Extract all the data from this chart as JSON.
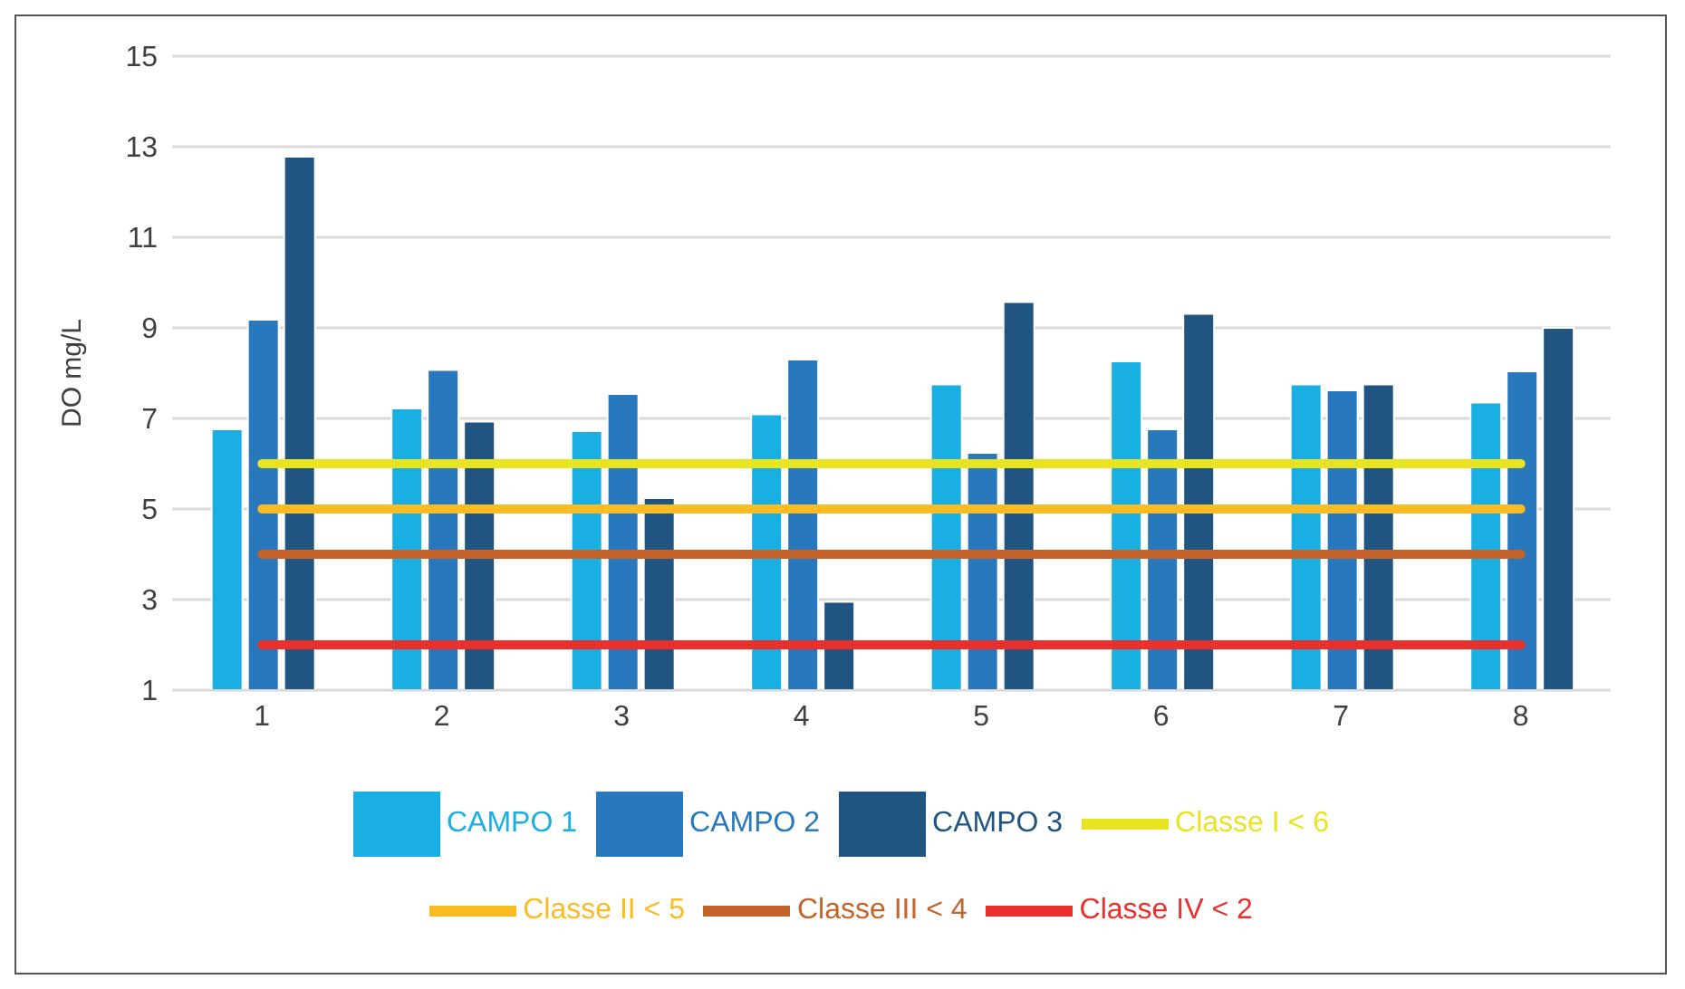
{
  "chart_data": {
    "type": "bar",
    "ylabel": "DO mg/L",
    "categories": [
      "1",
      "2",
      "3",
      "4",
      "5",
      "6",
      "7",
      "8"
    ],
    "series": [
      {
        "name": "CAMPO 1",
        "color": "#1aafe3",
        "values": [
          6.76,
          7.22,
          6.72,
          7.09,
          7.75,
          8.26,
          7.75,
          7.35
        ]
      },
      {
        "name": "CAMPO 2",
        "color": "#2878bd",
        "values": [
          9.18,
          8.07,
          7.54,
          8.3,
          6.24,
          6.76,
          7.62,
          8.04
        ]
      },
      {
        "name": "CAMPO 3",
        "color": "#1f5580",
        "values": [
          12.78,
          6.93,
          5.24,
          2.95,
          9.57,
          9.31,
          7.75,
          9.0
        ]
      },
      {
        "name": "Classe I < 6",
        "type": "line",
        "color": "#e8e41f",
        "values": [
          6,
          6,
          6,
          6,
          6,
          6,
          6,
          6
        ]
      },
      {
        "name": "Classe II < 5",
        "type": "line",
        "color": "#fbbc22",
        "values": [
          5,
          5,
          5,
          5,
          5,
          5,
          5,
          5
        ]
      },
      {
        "name": "Classe III < 4",
        "type": "line",
        "color": "#c5622a",
        "values": [
          4,
          4,
          4,
          4,
          4,
          4,
          4,
          4
        ]
      },
      {
        "name": "Classe IV < 2",
        "type": "line",
        "color": "#e8302c",
        "values": [
          2,
          2,
          2,
          2,
          2,
          2,
          2,
          2
        ]
      }
    ],
    "ylim": [
      1,
      15
    ],
    "yticks": [
      1,
      3,
      5,
      7,
      9,
      11,
      13,
      15
    ],
    "grid": "y",
    "legend": "bottom"
  }
}
